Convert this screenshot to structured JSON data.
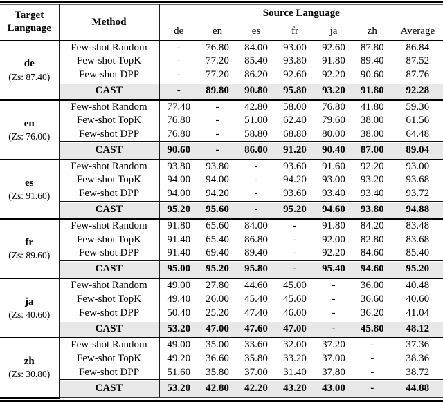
{
  "colors": {
    "cast_row_bg": "#e8e8e8",
    "rule_color": "#000000",
    "text_color": "#000000",
    "page_bg": "#ffffff"
  },
  "table": {
    "header": {
      "target_line1": "Target",
      "target_line2": "Language",
      "method": "Method",
      "source_language": "Source Language",
      "source_columns": [
        "de",
        "en",
        "es",
        "fr",
        "ja",
        "zh"
      ],
      "average": "Average"
    },
    "groups": [
      {
        "target": "de",
        "zs": "(Zs: 87.40)",
        "rows": [
          {
            "method": "Few-shot Random",
            "values": [
              "-",
              "76.80",
              "84.00",
              "93.00",
              "92.60",
              "87.80"
            ],
            "average": "86.84"
          },
          {
            "method": "Few-shot TopK",
            "values": [
              "-",
              "77.20",
              "85.40",
              "93.80",
              "91.80",
              "89.40"
            ],
            "average": "87.52"
          },
          {
            "method": "Few-shot DPP",
            "values": [
              "-",
              "77.20",
              "86.20",
              "92.60",
              "92.20",
              "90.60"
            ],
            "average": "87.76"
          }
        ],
        "cast": {
          "method": "CAST",
          "values": [
            "-",
            "89.80",
            "90.80",
            "95.80",
            "93.20",
            "91.80"
          ],
          "average": "92.28"
        }
      },
      {
        "target": "en",
        "zs": "(Zs: 76.00)",
        "rows": [
          {
            "method": "Few-shot Random",
            "values": [
              "77.40",
              "-",
              "42.80",
              "58.00",
              "76.80",
              "41.80"
            ],
            "average": "59.36"
          },
          {
            "method": "Few-shot TopK",
            "values": [
              "76.80",
              "-",
              "51.00",
              "62.40",
              "79.60",
              "38.00"
            ],
            "average": "61.56"
          },
          {
            "method": "Few-shot DPP",
            "values": [
              "76.80",
              "-",
              "58.80",
              "68.80",
              "80.00",
              "38.00"
            ],
            "average": "64.48"
          }
        ],
        "cast": {
          "method": "CAST",
          "values": [
            "90.60",
            "-",
            "86.00",
            "91.20",
            "90.40",
            "87.00"
          ],
          "average": "89.04"
        }
      },
      {
        "target": "es",
        "zs": "(Zs: 91.60)",
        "rows": [
          {
            "method": "Few-shot Random",
            "values": [
              "93.80",
              "93.80",
              "-",
              "93.60",
              "91.60",
              "92.20"
            ],
            "average": "93.00"
          },
          {
            "method": "Few-shot TopK",
            "values": [
              "94.00",
              "94.00",
              "-",
              "94.20",
              "93.00",
              "93.20"
            ],
            "average": "93.68"
          },
          {
            "method": "Few-shot DPP",
            "values": [
              "94.00",
              "94.20",
              "-",
              "93.60",
              "93.40",
              "93.40"
            ],
            "average": "93.72"
          }
        ],
        "cast": {
          "method": "CAST",
          "values": [
            "95.20",
            "95.60",
            "-",
            "95.20",
            "94.60",
            "93.80"
          ],
          "average": "94.88"
        }
      },
      {
        "target": "fr",
        "zs": "(Zs: 89.60)",
        "rows": [
          {
            "method": "Few-shot Random",
            "values": [
              "91.80",
              "65.60",
              "84.00",
              "-",
              "91.80",
              "84.20"
            ],
            "average": "83.48"
          },
          {
            "method": "Few-shot TopK",
            "values": [
              "91.40",
              "65.40",
              "86.80",
              "-",
              "92.00",
              "82.80"
            ],
            "average": "83.68"
          },
          {
            "method": "Few-shot DPP",
            "values": [
              "91.40",
              "69.40",
              "89.40",
              "-",
              "92.20",
              "84.60"
            ],
            "average": "85.40"
          }
        ],
        "cast": {
          "method": "CAST",
          "values": [
            "95.00",
            "95.20",
            "95.80",
            "-",
            "95.40",
            "94.60"
          ],
          "average": "95.20"
        }
      },
      {
        "target": "ja",
        "zs": "(Zs: 40.60)",
        "rows": [
          {
            "method": "Few-shot Random",
            "values": [
              "49.00",
              "27.80",
              "44.60",
              "45.00",
              "-",
              "36.00"
            ],
            "average": "40.48"
          },
          {
            "method": "Few-shot TopK",
            "values": [
              "49.40",
              "26.00",
              "45.40",
              "45.60",
              "-",
              "36.60"
            ],
            "average": "40.60"
          },
          {
            "method": "Few-shot DPP",
            "values": [
              "50.40",
              "25.20",
              "47.40",
              "46.00",
              "-",
              "36.20"
            ],
            "average": "41.04"
          }
        ],
        "cast": {
          "method": "CAST",
          "values": [
            "53.20",
            "47.00",
            "47.60",
            "47.00",
            "-",
            "45.80"
          ],
          "average": "48.12"
        }
      },
      {
        "target": "zh",
        "zs": "(Zs: 30.80)",
        "rows": [
          {
            "method": "Few-shot Random",
            "values": [
              "49.00",
              "35.00",
              "33.60",
              "32.00",
              "37.20",
              "-"
            ],
            "average": "37.36"
          },
          {
            "method": "Few-shot TopK",
            "values": [
              "49.20",
              "36.60",
              "35.80",
              "33.20",
              "37.00",
              "-"
            ],
            "average": "38.36"
          },
          {
            "method": "Few-shot DPP",
            "values": [
              "51.60",
              "35.80",
              "37.00",
              "31.40",
              "37.80",
              "-"
            ],
            "average": "38.72"
          }
        ],
        "cast": {
          "method": "CAST",
          "values": [
            "53.20",
            "42.80",
            "42.20",
            "43.20",
            "43.00",
            "-"
          ],
          "average": "44.88"
        }
      }
    ]
  }
}
